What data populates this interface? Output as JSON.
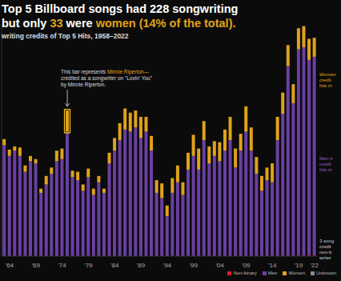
{
  "chart_data": {
    "type": "bar",
    "stacked": true,
    "tick_labels": "x",
    "grid": false,
    "legend": "lower right",
    "title": [
      "Top 5 Billboard songs had 228 songwriting",
      "but only 33 were women (14% of the total)."
    ],
    "title_highlights": [
      "33",
      "women (14% of the total)."
    ],
    "subtitle": "writing credits of Top 5 Hits, 1958–2022",
    "categories": [
      null,
      "'64",
      null,
      null,
      null,
      null,
      "'69",
      null,
      null,
      null,
      null,
      "'74",
      null,
      null,
      null,
      null,
      "'79",
      null,
      null,
      null,
      null,
      "'84",
      null,
      null,
      null,
      null,
      "'89",
      null,
      null,
      null,
      null,
      "'94",
      null,
      null,
      null,
      null,
      "'99",
      null,
      null,
      null,
      null,
      "'04",
      null,
      null,
      null,
      null,
      "'09",
      null,
      null,
      null,
      null,
      "'14",
      null,
      null,
      null,
      null,
      "'19",
      null,
      null,
      "'22"
    ],
    "series": [
      {
        "name": "Non-binary",
        "color": "#e3182d",
        "values": [
          0,
          0,
          0,
          0,
          0,
          0,
          0,
          0,
          0,
          0,
          0,
          0,
          0,
          0,
          0,
          0,
          0,
          0,
          0,
          0,
          0,
          0,
          0,
          0,
          0,
          0,
          0,
          0,
          0,
          0,
          0,
          0,
          0,
          0,
          0,
          0,
          0,
          0,
          0,
          0,
          0,
          0,
          0,
          0,
          0,
          0,
          0,
          0,
          0,
          0,
          0,
          0,
          0,
          0,
          0,
          0,
          1,
          0,
          1,
          1
        ]
      },
      {
        "name": "Men",
        "color": "#6a3fa3",
        "values": [
          105,
          95,
          100,
          95,
          80,
          90,
          88,
          60,
          68,
          78,
          90,
          92,
          118,
          75,
          72,
          62,
          75,
          58,
          70,
          60,
          88,
          100,
          110,
          120,
          118,
          122,
          112,
          118,
          100,
          60,
          55,
          38,
          60,
          70,
          58,
          82,
          95,
          82,
          110,
          88,
          95,
          90,
          100,
          110,
          84,
          100,
          118,
          100,
          78,
          62,
          72,
          70,
          110,
          135,
          180,
          145,
          195,
          198,
          185,
          188
        ]
      },
      {
        "name": "Women",
        "color": "#e0a21b",
        "values": [
          6,
          6,
          4,
          8,
          6,
          5,
          4,
          4,
          8,
          6,
          10,
          10,
          20,
          6,
          8,
          6,
          8,
          6,
          6,
          4,
          10,
          12,
          16,
          20,
          18,
          16,
          20,
          14,
          14,
          12,
          14,
          10,
          14,
          16,
          12,
          16,
          20,
          20,
          18,
          16,
          14,
          18,
          20,
          22,
          18,
          16,
          24,
          22,
          16,
          14,
          12,
          18,
          22,
          20,
          20,
          18,
          20,
          20,
          20,
          18
        ]
      },
      {
        "name": "Unknown",
        "color": "#8a8a8a",
        "values": [
          0,
          0,
          0,
          0,
          0,
          0,
          0,
          0,
          0,
          0,
          0,
          0,
          0,
          0,
          0,
          0,
          0,
          0,
          0,
          0,
          0,
          0,
          0,
          0,
          0,
          0,
          0,
          0,
          0,
          0,
          0,
          0,
          0,
          0,
          0,
          0,
          0,
          0,
          0,
          0,
          0,
          0,
          0,
          0,
          0,
          0,
          0,
          0,
          0,
          0,
          0,
          0,
          0,
          0,
          0,
          0,
          0,
          0,
          0,
          0
        ]
      }
    ],
    "ylim": [
      0,
      220
    ],
    "annotations": [
      {
        "text": [
          "This bar represents Minnie Riperton—",
          "credited as a songwriter on \"Lovin' You\"",
          "by Minnie Riperton."
        ],
        "highlights": [
          "Minnie Riperton—"
        ],
        "position": 12
      },
      {
        "text": [
          "Women",
          "credit",
          "hits in"
        ],
        "color": "#e0a21b"
      },
      {
        "text": [
          "Men h",
          "credit",
          "hits in"
        ],
        "color": "#8c63c9"
      },
      {
        "text": [
          "3 song",
          "credit",
          "non-b",
          "writer"
        ],
        "color": "#cccccc"
      }
    ]
  }
}
